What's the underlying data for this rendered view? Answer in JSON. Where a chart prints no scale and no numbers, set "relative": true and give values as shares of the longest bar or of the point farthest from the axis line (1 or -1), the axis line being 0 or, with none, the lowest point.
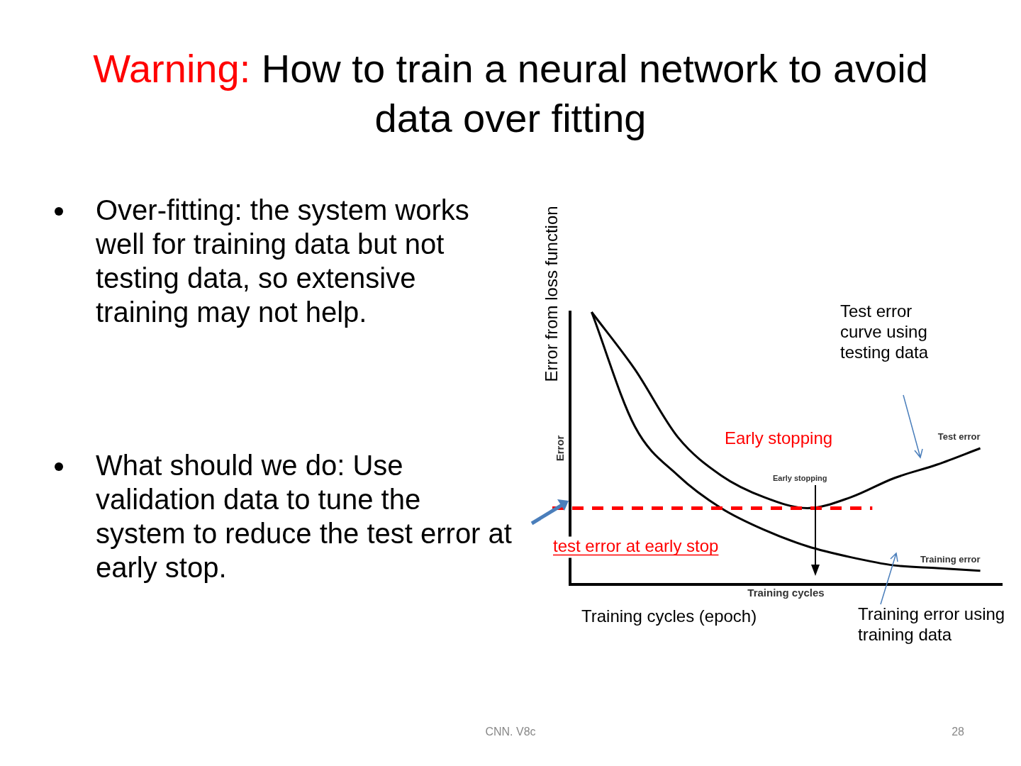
{
  "chart_data": {
    "type": "line",
    "relative": true,
    "title": "Warning: How to train a neural network to avoid data over fitting",
    "xlabel": "Training cycles",
    "ylabel": "Error",
    "categories": [
      null,
      null,
      null,
      null,
      null,
      null,
      null,
      null,
      null,
      null
    ],
    "series": [
      {
        "name": "Test error",
        "color": "#000000",
        "values": [
          1.0,
          0.79,
          0.54,
          0.4,
          0.32,
          0.28,
          0.32,
          0.39,
          0.44,
          0.5
        ]
      },
      {
        "name": "Training error",
        "color": "#000000",
        "values": [
          1.0,
          0.58,
          0.4,
          0.28,
          0.2,
          0.14,
          0.1,
          0.07,
          0.06,
          0.05
        ]
      }
    ],
    "ref_lines": [
      {
        "axis": "y",
        "value": 0.28,
        "label": "test error at early stop",
        "color": "#ff0000",
        "line_style": "dashed"
      }
    ],
    "annotations": [
      "Error from loss function",
      "Training cycles (epoch)",
      "Test error curve using testing data",
      "Training error using training data",
      "Early stopping",
      "Early stopping",
      "Over-fitting: the system works well for training data but not testing data, so extensive training may not help.",
      "What should we do: Use validation data to tune the system to reduce the test error at early stop.",
      "CNN. V8c",
      "28"
    ],
    "grid": false,
    "legend": false,
    "marker": "none",
    "line_style": "solid"
  }
}
